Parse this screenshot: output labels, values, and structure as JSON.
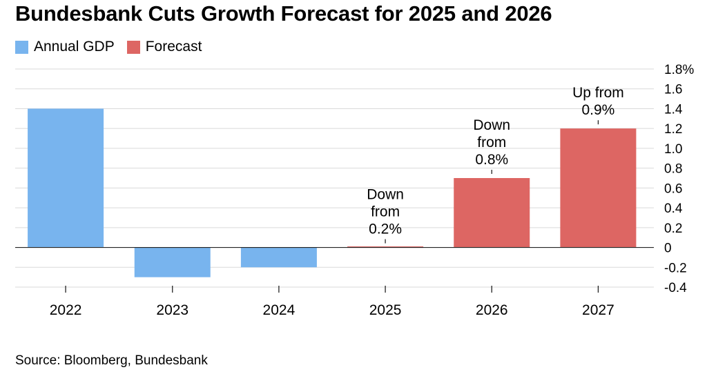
{
  "title": "Bundesbank Cuts Growth Forecast for 2025 and 2026",
  "source": "Source: Bloomberg, Bundesbank",
  "colors": {
    "actual": "#78b4ee",
    "forecast": "#dd6663",
    "grid": "#d9d9d9",
    "zero": "#222222",
    "text": "#000000"
  },
  "legend": [
    {
      "label": "Annual GDP",
      "color": "#78b4ee"
    },
    {
      "label": "Forecast",
      "color": "#dd6663"
    }
  ],
  "chart_data": {
    "type": "bar",
    "title": "Bundesbank Cuts Growth Forecast for 2025 and 2026",
    "xlabel": "",
    "ylabel": "",
    "categories": [
      "2022",
      "2023",
      "2024",
      "2025",
      "2026",
      "2027"
    ],
    "series": [
      {
        "name": "Annual GDP",
        "values": [
          1.4,
          -0.3,
          -0.2,
          null,
          null,
          null
        ]
      },
      {
        "name": "Forecast",
        "values": [
          null,
          null,
          null,
          0.0,
          0.7,
          1.2
        ]
      }
    ],
    "ylim": [
      -0.4,
      1.8
    ],
    "yticks": [
      1.8,
      1.6,
      1.4,
      1.2,
      1.0,
      0.8,
      0.6,
      0.4,
      0.2,
      0,
      -0.2,
      -0.4
    ],
    "ytick_labels": [
      "1.8%",
      "1.6",
      "1.4",
      "1.2",
      "1.0",
      "0.8",
      "0.6",
      "0.4",
      "0.2",
      "0",
      "-0.2",
      "-0.4"
    ],
    "y_axis_position": "right",
    "grid": true,
    "legend_position": "top-left",
    "annotations": [
      {
        "category": "2025",
        "lines": [
          "Down",
          "from",
          "0.2%"
        ]
      },
      {
        "category": "2026",
        "lines": [
          "Down",
          "from",
          "0.8%"
        ]
      },
      {
        "category": "2027",
        "lines": [
          "Up from",
          "0.9%"
        ]
      }
    ]
  }
}
